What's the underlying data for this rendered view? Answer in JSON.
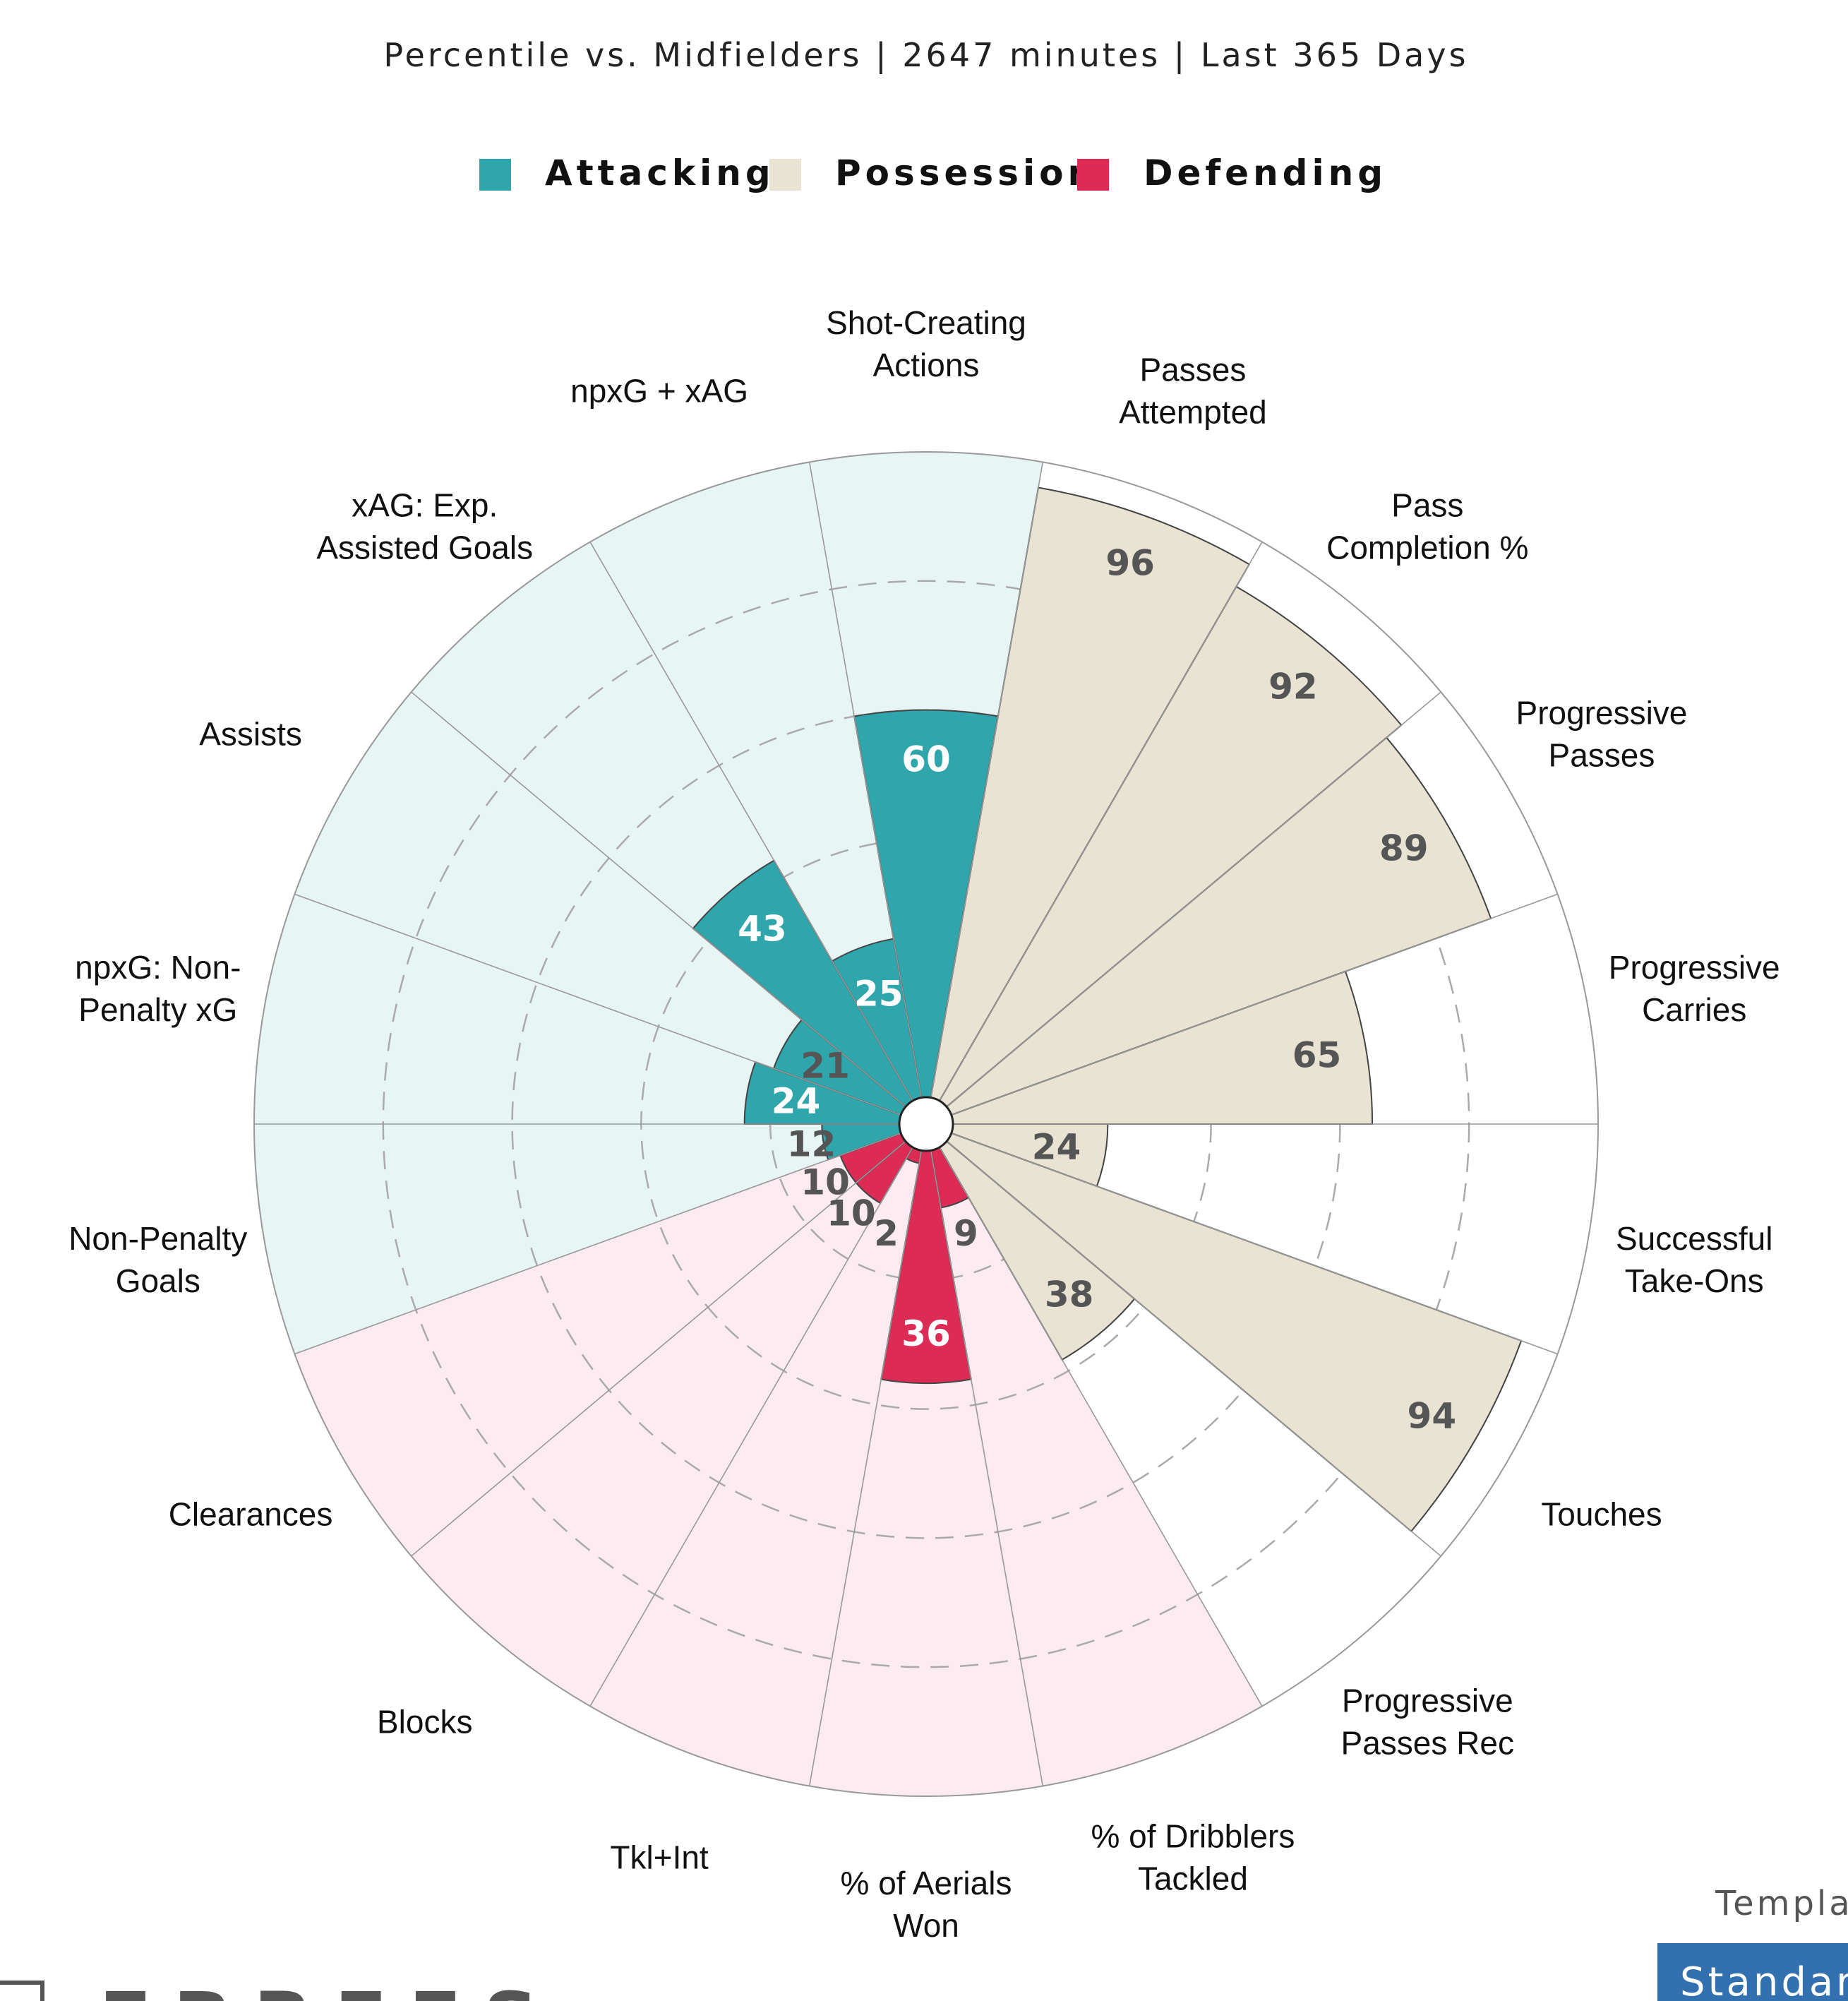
{
  "subtitle": "Percentile vs. Midfielders | 2647 minutes | Last 365 Days",
  "legend": [
    {
      "label": "Attacking",
      "color": "#2ea6ac"
    },
    {
      "label": "Possession",
      "color": "#e8e3d2"
    },
    {
      "label": "Defending",
      "color": "#dc2b55"
    }
  ],
  "footer": {
    "template_text": "Templa",
    "badge_text": "Standar",
    "brand_text": "FBREFS"
  },
  "colors": {
    "attacking_bg": "#e8f5f5",
    "defending_bg": "#fcebf0",
    "possession_bg": "#ffffff",
    "grid": "#999999",
    "dashed": "#aaaaaa",
    "value_dark": "#555555",
    "value_light": "#ffffff",
    "badge_bg": "#3270b0"
  },
  "chart_data": {
    "type": "polar-bar",
    "rlim": [
      0,
      100
    ],
    "grid_rings": [
      20,
      40,
      60,
      80
    ],
    "grid": true,
    "legend_position": "top-center",
    "segments": [
      {
        "label": "Shot-Creating Actions",
        "value": 60,
        "group": "Attacking"
      },
      {
        "label": "Passes Attempted",
        "value": 96,
        "group": "Possession"
      },
      {
        "label": "Pass Completion %",
        "value": 92,
        "group": "Possession"
      },
      {
        "label": "Progressive Passes",
        "value": 89,
        "group": "Possession"
      },
      {
        "label": "Progressive Carries",
        "value": 65,
        "group": "Possession"
      },
      {
        "label": "Successful Take-Ons",
        "value": 24,
        "group": "Possession"
      },
      {
        "label": "Touches",
        "value": 94,
        "group": "Possession"
      },
      {
        "label": "Progressive Passes Rec",
        "value": 38,
        "group": "Possession"
      },
      {
        "label": "% of Dribblers Tackled",
        "value": 9,
        "group": "Defending"
      },
      {
        "label": "% of Aerials Won",
        "value": 36,
        "group": "Defending"
      },
      {
        "label": "Tkl+Int",
        "value": 2,
        "group": "Defending"
      },
      {
        "label": "Blocks",
        "value": 10,
        "group": "Defending"
      },
      {
        "label": "Clearances",
        "value": 10,
        "group": "Defending"
      },
      {
        "label": "Non-Penalty Goals",
        "value": 12,
        "group": "Attacking"
      },
      {
        "label": "npxG: Non-Penalty xG",
        "value": 24,
        "group": "Attacking"
      },
      {
        "label": "Assists",
        "value": 21,
        "group": "Attacking"
      },
      {
        "label": "xAG: Exp. Assisted Goals",
        "value": 43,
        "group": "Attacking"
      },
      {
        "label": "npxG + xAG",
        "value": 25,
        "group": "Attacking"
      }
    ],
    "category_label_lines": [
      [
        "Shot-Creating",
        "Actions"
      ],
      [
        "Passes",
        "Attempted"
      ],
      [
        "Pass",
        "Completion %"
      ],
      [
        "Progressive",
        "Passes"
      ],
      [
        "Progressive",
        "Carries"
      ],
      [
        "Successful",
        "Take-Ons"
      ],
      [
        "Touches"
      ],
      [
        "Progressive",
        "Passes Rec"
      ],
      [
        "% of Dribblers",
        "Tackled"
      ],
      [
        "% of Aerials",
        "Won"
      ],
      [
        "Tkl+Int"
      ],
      [
        "Blocks"
      ],
      [
        "Clearances"
      ],
      [
        "Non-Penalty",
        "Goals"
      ],
      [
        "npxG: Non-",
        "Penalty xG"
      ],
      [
        "Assists"
      ],
      [
        "xAG: Exp.",
        "Assisted Goals"
      ],
      [
        "npxG + xAG"
      ]
    ]
  }
}
